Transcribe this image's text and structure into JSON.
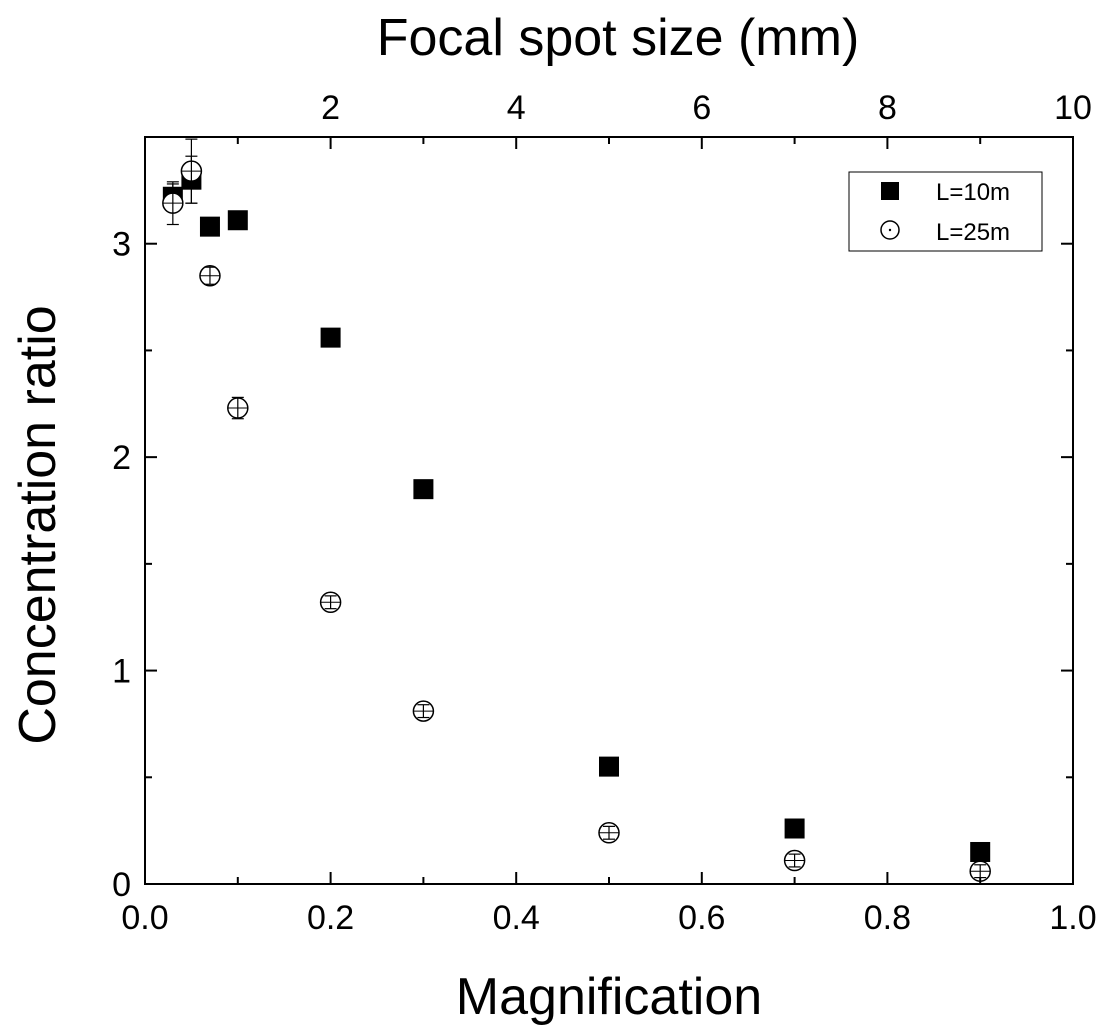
{
  "chart_data": {
    "type": "scatter",
    "xlabel": "Magnification",
    "x2label": "Focal spot size (mm)",
    "ylabel": "Concentration ratio",
    "xlim": [
      0.0,
      1.0
    ],
    "x2lim": [
      0,
      10
    ],
    "ylim": [
      0,
      3.5
    ],
    "xticks": [
      "0.0",
      "0.2",
      "0.4",
      "0.6",
      "0.8",
      "1.0"
    ],
    "x2ticks": [
      "2",
      "4",
      "6",
      "8",
      "10"
    ],
    "yticks": [
      "0",
      "1",
      "2",
      "3"
    ],
    "legend_position": "top-right",
    "series": [
      {
        "name": "L=10m",
        "marker": "filled-square",
        "color": "#000000",
        "x": [
          0.03,
          0.05,
          0.07,
          0.1,
          0.2,
          0.3,
          0.5,
          0.7,
          0.9
        ],
        "y": [
          3.22,
          3.3,
          3.08,
          3.11,
          2.56,
          1.85,
          0.55,
          0.26,
          0.15
        ],
        "yerr": [
          0.06,
          0.11,
          0.03,
          0.03,
          0.02,
          0.02,
          0.01,
          0.01,
          0.01
        ]
      },
      {
        "name": "L=25m",
        "marker": "open-circle",
        "color": "#000000",
        "x": [
          0.03,
          0.05,
          0.07,
          0.1,
          0.2,
          0.3,
          0.5,
          0.7,
          0.9
        ],
        "y": [
          3.19,
          3.34,
          2.85,
          2.23,
          1.32,
          0.81,
          0.24,
          0.11,
          0.06
        ],
        "yerr": [
          0.1,
          0.15,
          0.04,
          0.05,
          0.03,
          0.03,
          0.03,
          0.03,
          0.03
        ]
      }
    ]
  }
}
